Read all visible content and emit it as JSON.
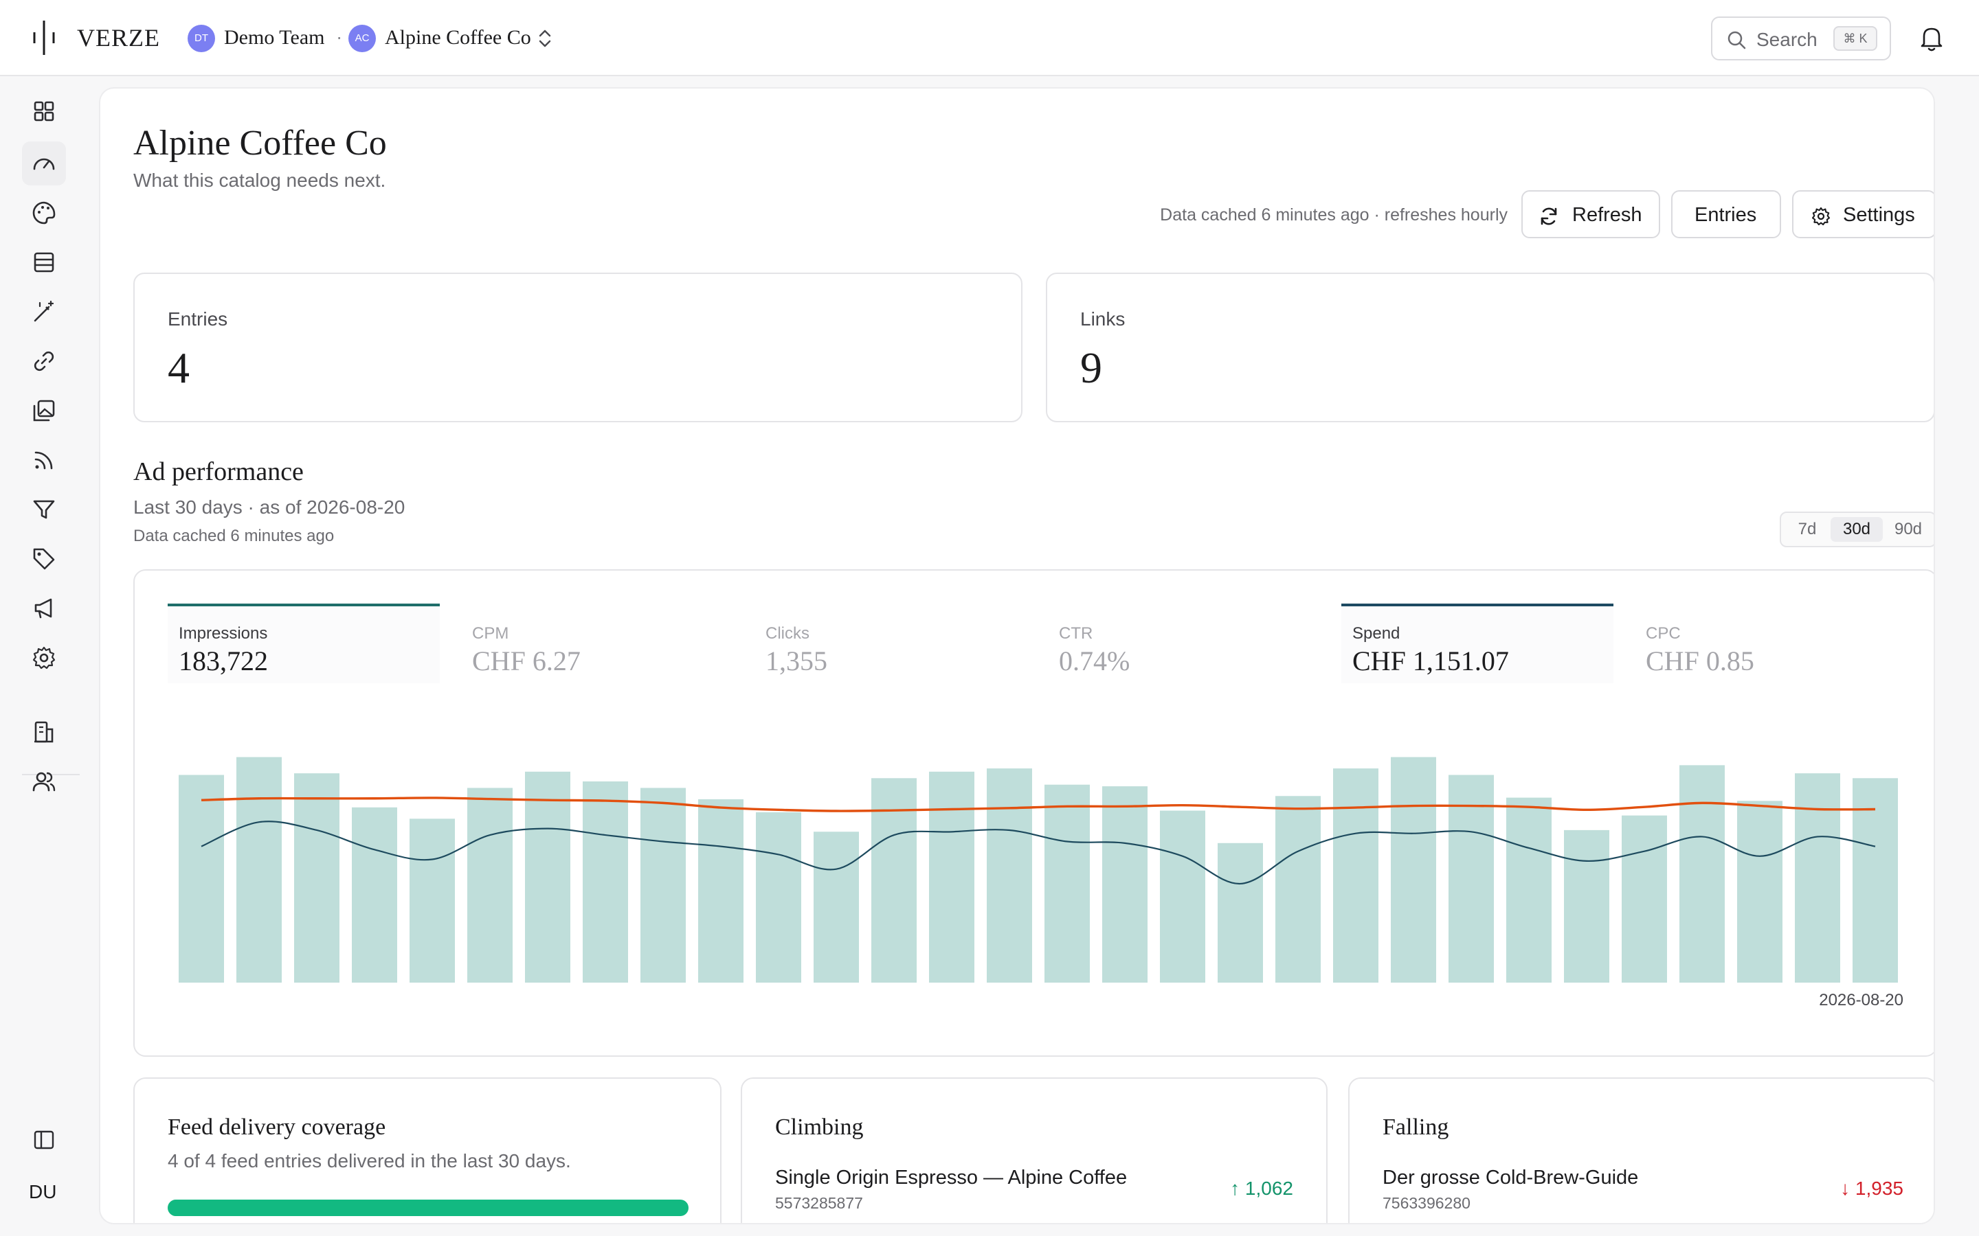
{
  "app": {
    "logo_text": "VERZE",
    "team": {
      "initials": "DT",
      "name": "Demo Team"
    },
    "separator": "·",
    "catalog": {
      "initials": "AC",
      "name": "Alpine Coffee Co"
    },
    "search": {
      "label": "Search",
      "shortcut": "⌘ K"
    },
    "user_initials": "DU"
  },
  "sidebar": {
    "icons": [
      "grid-icon",
      "gauge-icon",
      "palette-icon",
      "table-icon",
      "magic-wand-icon",
      "link-icon",
      "images-icon",
      "rss-icon",
      "filter-icon",
      "tag-icon",
      "megaphone-icon",
      "gear-icon",
      "building-icon",
      "users-icon"
    ]
  },
  "page": {
    "title": "Alpine Coffee Co",
    "subtitle": "What this catalog needs next.",
    "cache_note": "Data cached 6 minutes ago · refreshes hourly",
    "buttons": {
      "refresh": "Refresh",
      "entries": "Entries",
      "settings": "Settings"
    }
  },
  "stats": [
    {
      "label": "Entries",
      "value": "4"
    },
    {
      "label": "Links",
      "value": "9"
    }
  ],
  "ad_performance": {
    "title": "Ad performance",
    "subtitle": "Last 30 days · as of 2026-08-20",
    "cache_note": "Data cached 6 minutes ago",
    "ranges": [
      "7d",
      "30d",
      "90d"
    ],
    "selected_range": "30d",
    "metrics": [
      {
        "label": "Impressions",
        "value": "183,722",
        "active": true,
        "accent": "#1f6e6a"
      },
      {
        "label": "CPM",
        "value": "CHF 6.27",
        "active": false
      },
      {
        "label": "Clicks",
        "value": "1,355",
        "active": false
      },
      {
        "label": "CTR",
        "value": "0.74%",
        "active": false
      },
      {
        "label": "Spend",
        "value": "CHF 1,151.07",
        "active": true,
        "accent": "#1d4a62"
      },
      {
        "label": "CPC",
        "value": "CHF 0.85",
        "active": false
      }
    ],
    "end_date_label": "2026-08-20"
  },
  "chart_data": {
    "type": "bar",
    "x_end": "2026-08-20",
    "days": 30,
    "colors": {
      "impressions_bar": "#bfdeda",
      "impressions_line": "#1d4a5e",
      "spend_line": "#e2500f"
    },
    "series": [
      {
        "name": "Impressions",
        "kind": "bar",
        "values": [
          6400,
          6950,
          6450,
          5400,
          5050,
          6000,
          6500,
          6200,
          6000,
          5650,
          5250,
          4650,
          6300,
          6500,
          6600,
          6100,
          6050,
          5300,
          4300,
          5750,
          6600,
          6950,
          6400,
          5700,
          4700,
          5150,
          6700,
          5600,
          6450,
          6300
        ]
      },
      {
        "name": "Impressions (trend)",
        "kind": "line",
        "values": [
          5150,
          5900,
          5650,
          5050,
          4750,
          5500,
          5700,
          5500,
          5300,
          5150,
          4900,
          4450,
          5500,
          5600,
          5650,
          5300,
          5250,
          4850,
          4000,
          5000,
          5550,
          5550,
          5600,
          5100,
          4700,
          5000,
          5450,
          4850,
          5450,
          5150
        ]
      },
      {
        "name": "Spend",
        "kind": "line",
        "values": [
          40.5,
          40.8,
          40.8,
          40.8,
          40.9,
          40.7,
          40.5,
          40.4,
          40.0,
          39.2,
          38.8,
          38.6,
          38.7,
          38.9,
          39.1,
          39.4,
          39.4,
          39.6,
          39.3,
          39.0,
          39.2,
          39.5,
          39.5,
          39.3,
          38.8,
          39.3,
          40.0,
          39.5,
          38.9,
          38.9
        ]
      }
    ]
  },
  "bottom": {
    "coverage": {
      "title": "Feed delivery coverage",
      "subtitle": "4 of 4 feed entries delivered in the last 30 days.",
      "progress": 1.0
    },
    "climbing": {
      "title": "Climbing",
      "item": {
        "name": "Single Origin Espresso — Alpine Coffee",
        "id": "5573285877",
        "delta": "↑ 1,062"
      }
    },
    "falling": {
      "title": "Falling",
      "item": {
        "name": "Der grosse Cold-Brew-Guide",
        "id": "7563396280",
        "delta": "↓ 1,935"
      }
    }
  }
}
